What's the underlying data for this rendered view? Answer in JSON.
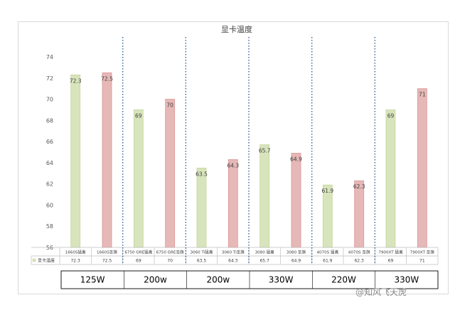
{
  "chart_data": {
    "type": "bar",
    "title": "显卡温度",
    "legend": "显卡温度",
    "categories": [
      "1660S猛禽",
      "1660S圣旗",
      "6750 GRE猛禽",
      "6750 GRE圣旗",
      "3060 Ti猛禽",
      "3060 Ti圣旗",
      "3080 猛禽",
      "3080 圣旗",
      "4070S 猛禽",
      "4070S 圣旗",
      "7900XT 猛禽",
      "7900XT 圣旗"
    ],
    "values": [
      72.3,
      72.5,
      69,
      70,
      63.5,
      64.3,
      65.7,
      64.9,
      61.9,
      62.3,
      69,
      71
    ],
    "value_labels": [
      "72.3",
      "72.5",
      "69",
      "70",
      "63.5",
      "64.3",
      "65.7",
      "64.9",
      "61.9",
      "62.3",
      "69",
      "71"
    ],
    "table_values": [
      "72.3",
      "72.5",
      "69",
      "70",
      "63.5",
      "64.3",
      "65.7",
      "64.9",
      "61.9",
      "62.3",
      "69",
      "71"
    ],
    "colors": [
      "#d8e4bc",
      "#e6b8b7"
    ],
    "edge_colors": [
      "#c4d79b",
      "#da9694"
    ],
    "divider_color": "#2e5f9a",
    "ylim": [
      56,
      74
    ],
    "yticks": [
      "56",
      "58",
      "60",
      "62",
      "64",
      "66",
      "68",
      "70",
      "72",
      "74"
    ],
    "groups": [
      "125W",
      "200w",
      "200w",
      "330W",
      "220W",
      "330W"
    ],
    "grid": false
  },
  "watermark": "@知风飞天虎"
}
